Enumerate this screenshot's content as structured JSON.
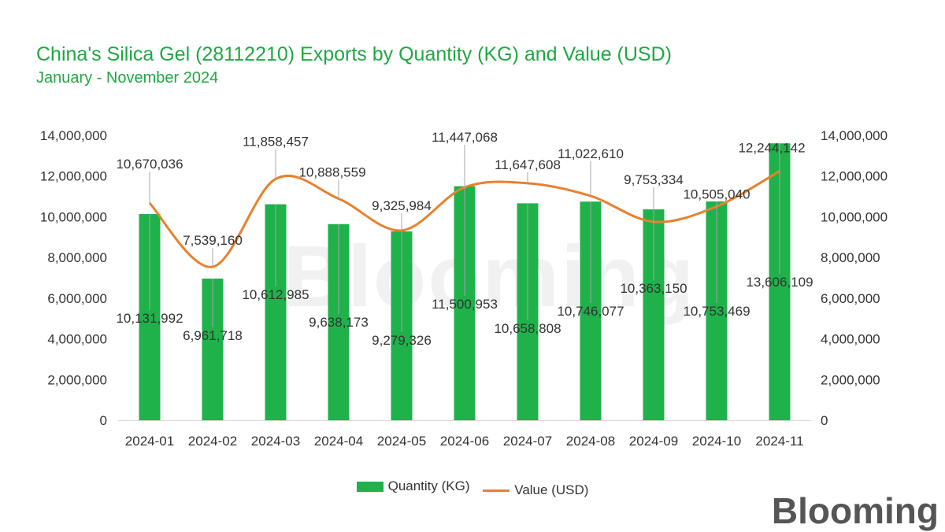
{
  "chart_data": {
    "type": "bar+line",
    "title": "China's Silica Gel (28112210) Exports by Quantity (KG) and Value (USD)",
    "subtitle": "January - November 2024",
    "categories": [
      "2024-01",
      "2024-02",
      "2024-03",
      "2024-04",
      "2024-05",
      "2024-06",
      "2024-07",
      "2024-08",
      "2024-09",
      "2024-10",
      "2024-11"
    ],
    "series": [
      {
        "name": "Quantity (KG)",
        "type": "bar",
        "axis": "left",
        "values": [
          10131992,
          6961718,
          10612985,
          9638173,
          9279326,
          11500953,
          10658808,
          10746077,
          10363150,
          10753469,
          13606109
        ],
        "labels": [
          "10,131,992",
          "6,961,718",
          "10,612,985",
          "9,638,173",
          "9,279,326",
          "11,500,953",
          "10,658,808",
          "10,746,077",
          "10,363,150",
          "10,753,469",
          "13,606,109"
        ]
      },
      {
        "name": "Value (USD)",
        "type": "line",
        "axis": "right",
        "values": [
          10670036,
          7539160,
          11858457,
          10888559,
          9325984,
          11447068,
          11647608,
          11022610,
          9753334,
          10505040,
          12244142
        ],
        "labels": [
          "10,670,036",
          "7,539,160",
          "11,858,457",
          "10,888,559",
          "9,325,984",
          "11,447,068",
          "11,647,608",
          "11,022,610",
          "9,753,334",
          "10,505,040",
          "12,244,142"
        ]
      }
    ],
    "ylim": [
      0,
      14000000
    ],
    "y2lim": [
      0,
      14000000
    ],
    "yticks": [
      "0",
      "2,000,000",
      "4,000,000",
      "6,000,000",
      "8,000,000",
      "10,000,000",
      "12,000,000",
      "14,000,000"
    ],
    "legend_position": "bottom-center",
    "grid": false
  },
  "colors": {
    "bar": "#1fb14a",
    "line": "#e8812e",
    "title": "#1fa843",
    "text": "#333333",
    "axis": "#d9d9d9"
  },
  "legend": {
    "bar_label": "Quantity (KG)",
    "line_label": "Value (USD)"
  },
  "logo": {
    "text": "Blooming"
  }
}
